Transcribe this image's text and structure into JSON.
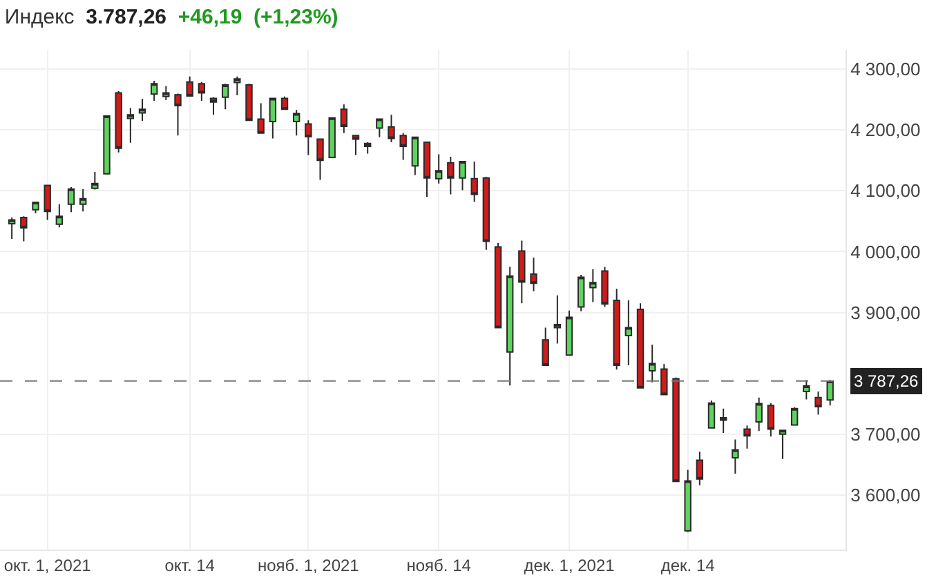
{
  "chart_data": {
    "type": "candlestick",
    "title": "Индекс",
    "annotations": [
      "3.787,26",
      "+46,19",
      "(+1,23%)"
    ],
    "categories": [
      null,
      null,
      null,
      "окт. 1, 2021",
      null,
      null,
      null,
      null,
      null,
      null,
      null,
      null,
      null,
      null,
      null,
      "окт. 14",
      null,
      null,
      null,
      null,
      null,
      null,
      null,
      null,
      null,
      "нояб. 1, 2021",
      null,
      null,
      null,
      null,
      null,
      null,
      null,
      null,
      null,
      null,
      "нояб. 14",
      null,
      null,
      null,
      null,
      null,
      null,
      null,
      null,
      null,
      null,
      "дек. 1, 2021",
      null,
      null,
      null,
      null,
      null,
      null,
      null,
      null,
      null,
      "дек. 14",
      null,
      null,
      null,
      null,
      null,
      null,
      null,
      null,
      null,
      null,
      null,
      null
    ],
    "ohlc": [
      [
        4046,
        4056,
        4021,
        4052
      ],
      [
        4056,
        4058,
        4017,
        4039
      ],
      [
        4069,
        4082,
        4063,
        4081
      ],
      [
        4109,
        4110,
        4052,
        4066
      ],
      [
        4045,
        4078,
        4040,
        4058
      ],
      [
        4078,
        4106,
        4065,
        4103
      ],
      [
        4078,
        4103,
        4066,
        4087
      ],
      [
        4104,
        4131,
        4102,
        4112
      ],
      [
        4128,
        4223,
        4128,
        4223
      ],
      [
        4261,
        4264,
        4163,
        4170
      ],
      [
        4219,
        4236,
        4179,
        4225
      ],
      [
        4228,
        4251,
        4215,
        4234
      ],
      [
        4259,
        4281,
        4248,
        4276
      ],
      [
        4255,
        4272,
        4249,
        4261
      ],
      [
        4258,
        4260,
        4191,
        4240
      ],
      [
        4279,
        4288,
        4256,
        4256
      ],
      [
        4276,
        4279,
        4248,
        4261
      ],
      [
        4252,
        4254,
        4225,
        4246
      ],
      [
        4254,
        4276,
        4234,
        4274
      ],
      [
        4278,
        4288,
        4257,
        4284
      ],
      [
        4274,
        4276,
        4216,
        4216
      ],
      [
        4218,
        4244,
        4195,
        4195
      ],
      [
        4214,
        4252,
        4186,
        4252
      ],
      [
        4252,
        4255,
        4234,
        4234
      ],
      [
        4214,
        4233,
        4191,
        4227
      ],
      [
        4210,
        4216,
        4159,
        4189
      ],
      [
        4185,
        4185,
        4118,
        4150
      ],
      [
        4155,
        4220,
        4155,
        4220
      ],
      [
        4234,
        4242,
        4195,
        4206
      ],
      [
        4191,
        4191,
        4159,
        4185
      ],
      [
        4178,
        4180,
        4161,
        4173
      ],
      [
        4203,
        4218,
        4188,
        4218
      ],
      [
        4205,
        4225,
        4180,
        4186
      ],
      [
        4191,
        4195,
        4151,
        4173
      ],
      [
        4141,
        4189,
        4126,
        4188
      ],
      [
        4180,
        4180,
        4090,
        4121
      ],
      [
        4120,
        4160,
        4112,
        4133
      ],
      [
        4146,
        4156,
        4094,
        4121
      ],
      [
        4121,
        4148,
        4101,
        4148
      ],
      [
        4120,
        4148,
        4082,
        4094
      ],
      [
        4121,
        4123,
        4003,
        4017
      ],
      [
        4008,
        4014,
        3875,
        3875
      ],
      [
        3835,
        3975,
        3780,
        3960
      ],
      [
        4001,
        4018,
        3915,
        3950
      ],
      [
        3963,
        3990,
        3935,
        3948
      ],
      [
        3855,
        3875,
        3813,
        3813
      ],
      [
        3875,
        3928,
        3849,
        3880
      ],
      [
        3830,
        3903,
        3830,
        3892
      ],
      [
        3909,
        3962,
        3902,
        3958
      ],
      [
        3941,
        3971,
        3917,
        3949
      ],
      [
        3968,
        3975,
        3909,
        3914
      ],
      [
        3920,
        3939,
        3806,
        3813
      ],
      [
        3862,
        3920,
        3813,
        3875
      ],
      [
        3905,
        3915,
        3776,
        3776
      ],
      [
        3804,
        3847,
        3785,
        3816
      ],
      [
        3807,
        3815,
        3765,
        3765
      ],
      [
        3791,
        3793,
        3622,
        3622
      ],
      [
        3541,
        3641,
        3539,
        3623
      ],
      [
        3657,
        3671,
        3616,
        3626
      ],
      [
        3710,
        3755,
        3710,
        3751
      ],
      [
        3727,
        3742,
        3702,
        3723
      ],
      [
        3661,
        3691,
        3635,
        3674
      ],
      [
        3708,
        3714,
        3676,
        3697
      ],
      [
        3720,
        3760,
        3705,
        3750
      ],
      [
        3747,
        3751,
        3696,
        3708
      ],
      [
        3700,
        3706,
        3659,
        3706
      ],
      [
        3715,
        3744,
        3715,
        3742
      ],
      [
        3770,
        3789,
        3757,
        3779
      ],
      [
        3760,
        3770,
        3732,
        3745
      ],
      [
        3756,
        3789,
        3747,
        3787
      ]
    ],
    "ylim": [
      3510,
      4332
    ],
    "yticks": [
      {
        "value": 3600,
        "label": "3 600,00"
      },
      {
        "value": 3700,
        "label": "3 700,00"
      },
      {
        "value": 3900,
        "label": "3 900,00"
      },
      {
        "value": 4000,
        "label": "4 000,00"
      },
      {
        "value": 4100,
        "label": "4 100,00"
      },
      {
        "value": 4200,
        "label": "4 200,00"
      },
      {
        "value": 4300,
        "label": "4 300,00"
      }
    ],
    "ref_lines": [
      {
        "axis": "y",
        "value": 3787.26,
        "label": "3 787,26",
        "color": "#777777",
        "line_style": "dashed"
      }
    ],
    "grid": true,
    "legend": false
  }
}
